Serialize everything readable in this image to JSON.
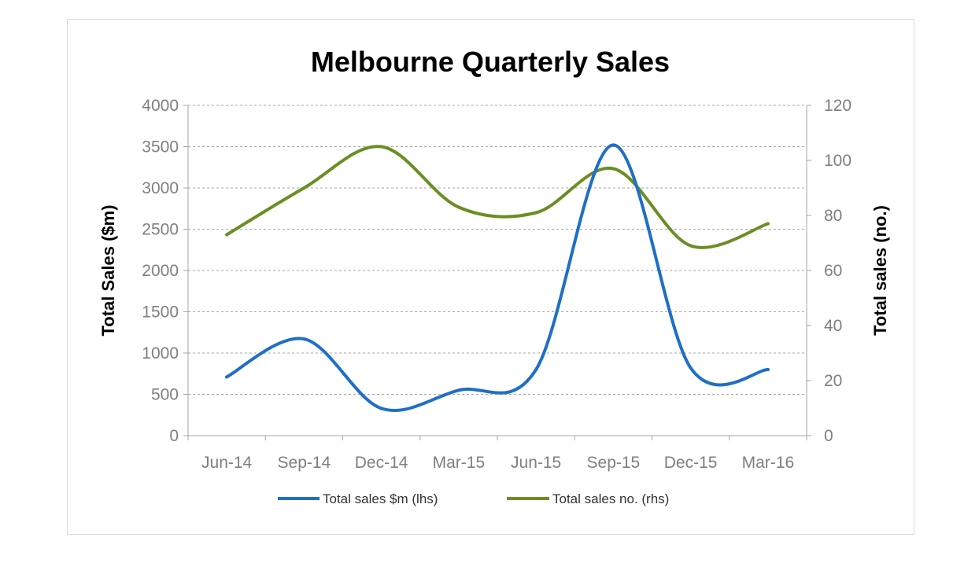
{
  "chart_data": {
    "type": "line",
    "title": "Melbourne Quarterly Sales",
    "categories": [
      "Jun-14",
      "Sep-14",
      "Dec-14",
      "Mar-15",
      "Jun-15",
      "Sep-15",
      "Dec-15",
      "Mar-16"
    ],
    "ylabel": "Total Sales ($m)",
    "y2label": "Total sales (no.)",
    "ylim": [
      0,
      4000
    ],
    "y2lim": [
      0,
      120
    ],
    "yticks": [
      0,
      500,
      1000,
      1500,
      2000,
      2500,
      3000,
      3500,
      4000
    ],
    "y2ticks": [
      0,
      20,
      40,
      60,
      80,
      100,
      120
    ],
    "grid": true,
    "legend_position": "bottom",
    "series": [
      {
        "name": "Total sales $m (lhs)",
        "axis": "left",
        "color": "#1f6fc5",
        "values": [
          710,
          1170,
          330,
          550,
          800,
          3520,
          820,
          800
        ]
      },
      {
        "name": "Total sales no. (rhs)",
        "axis": "right",
        "color": "#6b8e23",
        "values": [
          73,
          90,
          105,
          83,
          81,
          97,
          69,
          77
        ]
      }
    ]
  }
}
